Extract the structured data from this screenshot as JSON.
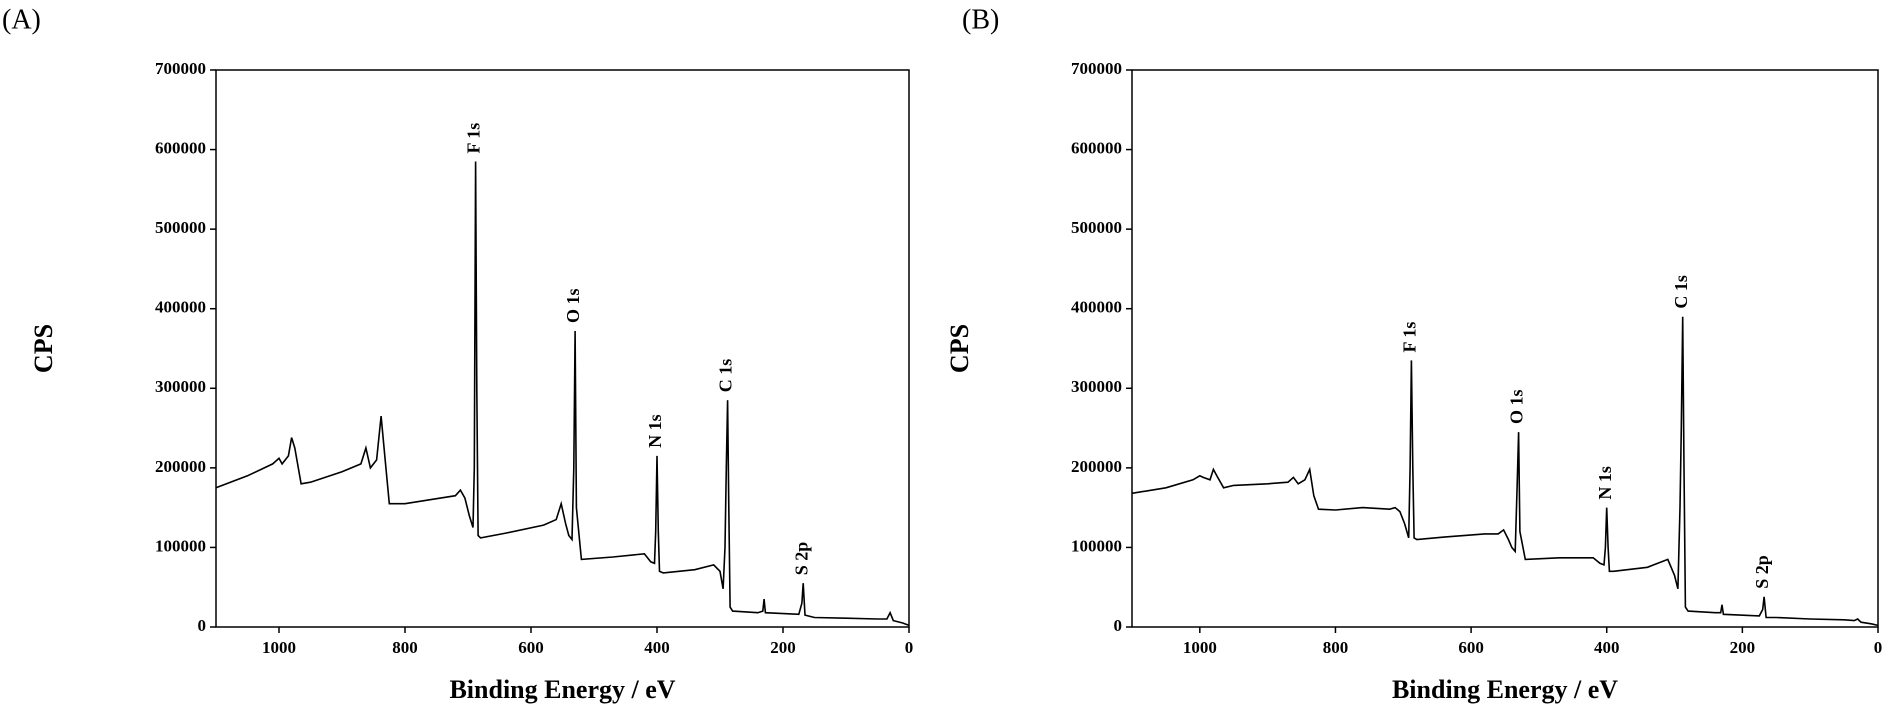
{
  "chart_data": [
    {
      "type": "line",
      "panel": "(A)",
      "xlabel": "Binding Energy / eV",
      "ylabel": "CPS",
      "color": "#000000",
      "xlim": [
        1100,
        0
      ],
      "xticks": [
        1000,
        800,
        600,
        400,
        200,
        0
      ],
      "ylim": [
        0,
        700000
      ],
      "yticks": [
        0,
        100000,
        200000,
        300000,
        400000,
        500000,
        600000,
        700000
      ],
      "x": [
        1100,
        1050,
        1010,
        1000,
        995,
        985,
        980,
        975,
        965,
        950,
        900,
        870,
        862,
        855,
        845,
        838,
        832,
        825,
        800,
        760,
        720,
        712,
        705,
        698,
        692,
        690,
        688,
        686,
        684,
        680,
        640,
        580,
        560,
        552,
        545,
        540,
        535,
        532,
        530,
        528,
        520,
        470,
        420,
        410,
        404,
        402,
        400,
        398,
        396,
        390,
        340,
        310,
        300,
        295,
        292,
        290,
        288,
        286,
        284,
        280,
        240,
        232,
        230,
        228,
        175,
        170,
        168,
        165,
        150,
        100,
        50,
        35,
        30,
        25,
        10,
        0
      ],
      "values": [
        175000,
        190000,
        205000,
        212000,
        205000,
        215000,
        238000,
        225000,
        180000,
        182000,
        195000,
        205000,
        225000,
        200000,
        210000,
        265000,
        215000,
        155000,
        155000,
        160000,
        165000,
        172000,
        162000,
        140000,
        125000,
        200000,
        585000,
        300000,
        115000,
        112000,
        118000,
        128000,
        135000,
        155000,
        130000,
        115000,
        110000,
        200000,
        372000,
        150000,
        85000,
        88000,
        92000,
        82000,
        80000,
        120000,
        215000,
        120000,
        70000,
        68000,
        72000,
        78000,
        70000,
        48000,
        100000,
        200000,
        285000,
        150000,
        25000,
        20000,
        18000,
        20000,
        35000,
        18000,
        16000,
        30000,
        55000,
        15000,
        12000,
        11000,
        10000,
        10000,
        18000,
        8000,
        5000,
        2000
      ],
      "annotations": [
        {
          "label": "F 1s",
          "x": 688,
          "y": 585000
        },
        {
          "label": "O 1s",
          "x": 530,
          "y": 372000
        },
        {
          "label": "N 1s",
          "x": 400,
          "y": 215000
        },
        {
          "label": "C 1s",
          "x": 288,
          "y": 285000
        },
        {
          "label": "S 2p",
          "x": 168,
          "y": 55000
        }
      ]
    },
    {
      "type": "line",
      "panel": "(B)",
      "xlabel": "Binding Energy / eV",
      "ylabel": "CPS",
      "color": "#000000",
      "xlim": [
        1100,
        0
      ],
      "xticks": [
        1000,
        800,
        600,
        400,
        200,
        0
      ],
      "ylim": [
        0,
        700000
      ],
      "yticks": [
        0,
        100000,
        200000,
        300000,
        400000,
        500000,
        600000,
        700000
      ],
      "x": [
        1100,
        1050,
        1010,
        1000,
        995,
        985,
        980,
        975,
        965,
        950,
        900,
        870,
        862,
        855,
        845,
        838,
        832,
        825,
        800,
        760,
        720,
        712,
        705,
        698,
        692,
        690,
        688,
        686,
        684,
        680,
        640,
        580,
        560,
        552,
        545,
        540,
        535,
        532,
        530,
        528,
        520,
        470,
        420,
        410,
        404,
        402,
        400,
        398,
        396,
        390,
        340,
        310,
        300,
        295,
        292,
        290,
        288,
        286,
        284,
        280,
        240,
        232,
        230,
        228,
        175,
        170,
        168,
        165,
        150,
        100,
        50,
        35,
        30,
        25,
        10,
        0
      ],
      "values": [
        168000,
        175000,
        185000,
        190000,
        188000,
        185000,
        198000,
        190000,
        175000,
        178000,
        180000,
        182000,
        188000,
        180000,
        185000,
        198000,
        165000,
        148000,
        147000,
        150000,
        148000,
        150000,
        145000,
        130000,
        112000,
        200000,
        335000,
        200000,
        112000,
        110000,
        113000,
        117000,
        117000,
        122000,
        110000,
        100000,
        95000,
        180000,
        245000,
        120000,
        85000,
        87000,
        87000,
        80000,
        78000,
        100000,
        150000,
        100000,
        70000,
        70000,
        75000,
        85000,
        65000,
        48000,
        150000,
        250000,
        390000,
        200000,
        25000,
        20000,
        18000,
        18000,
        28000,
        16000,
        14000,
        22000,
        38000,
        12000,
        12000,
        10000,
        9000,
        8000,
        10000,
        6000,
        4000,
        2000
      ],
      "annotations": [
        {
          "label": "F 1s",
          "x": 688,
          "y": 335000
        },
        {
          "label": "O 1s",
          "x": 530,
          "y": 245000
        },
        {
          "label": "N 1s",
          "x": 400,
          "y": 150000
        },
        {
          "label": "C 1s",
          "x": 288,
          "y": 390000
        },
        {
          "label": "S 2p",
          "x": 168,
          "y": 38000
        }
      ]
    }
  ]
}
